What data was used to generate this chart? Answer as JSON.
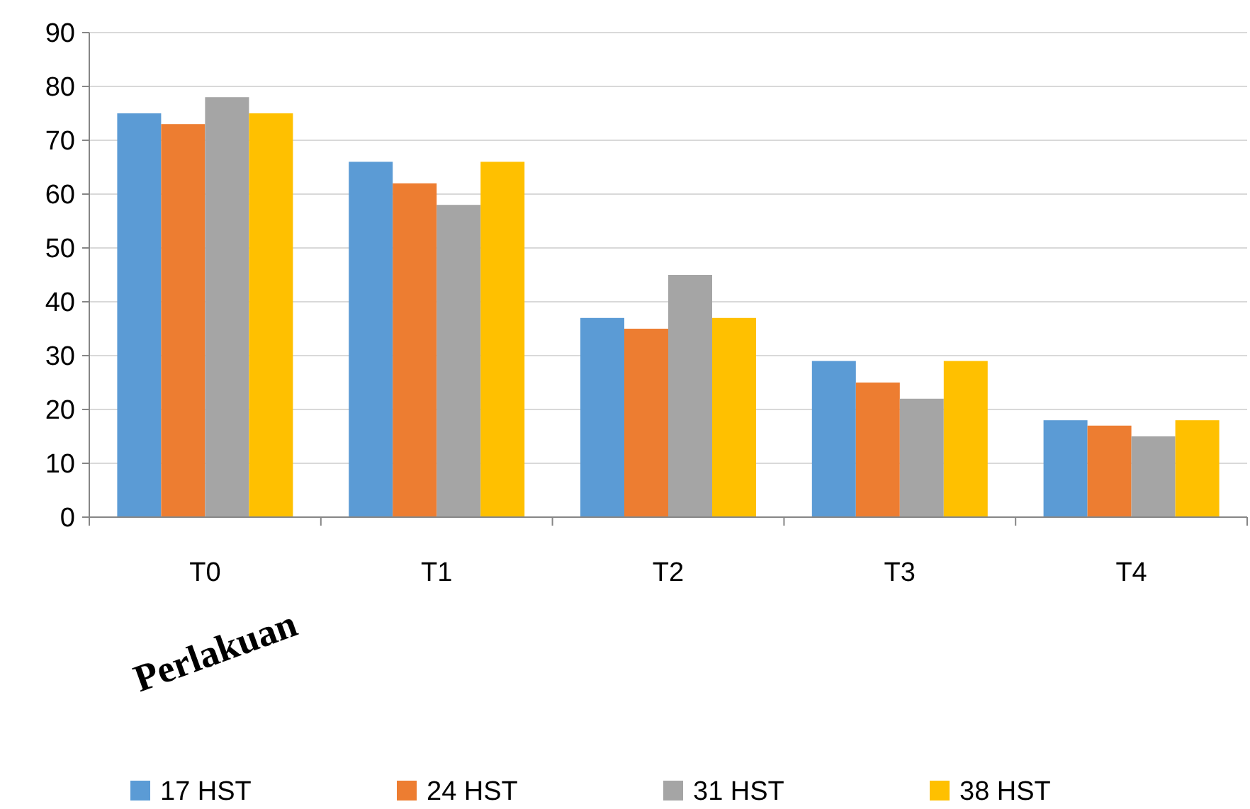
{
  "chart_data": {
    "type": "bar",
    "xlabel": "Perlakuan",
    "categories": [
      "T0",
      "T1",
      "T2",
      "T3",
      "T4"
    ],
    "series": [
      {
        "name": "17 HST",
        "color": "#5b9bd5",
        "values": [
          75,
          66,
          37,
          29,
          18
        ]
      },
      {
        "name": "24 HST",
        "color": "#ed7d31",
        "values": [
          73,
          62,
          35,
          25,
          17
        ]
      },
      {
        "name": "31 HST",
        "color": "#a5a5a5",
        "values": [
          78,
          58,
          45,
          22,
          15
        ]
      },
      {
        "name": "38 HST",
        "color": "#ffc000",
        "values": [
          75,
          66,
          37,
          29,
          18
        ]
      }
    ],
    "ylim": [
      0,
      90
    ],
    "yticks": [
      0,
      10,
      20,
      30,
      40,
      50,
      60,
      70,
      80,
      90
    ],
    "grid": "y",
    "legend": "bottom"
  }
}
